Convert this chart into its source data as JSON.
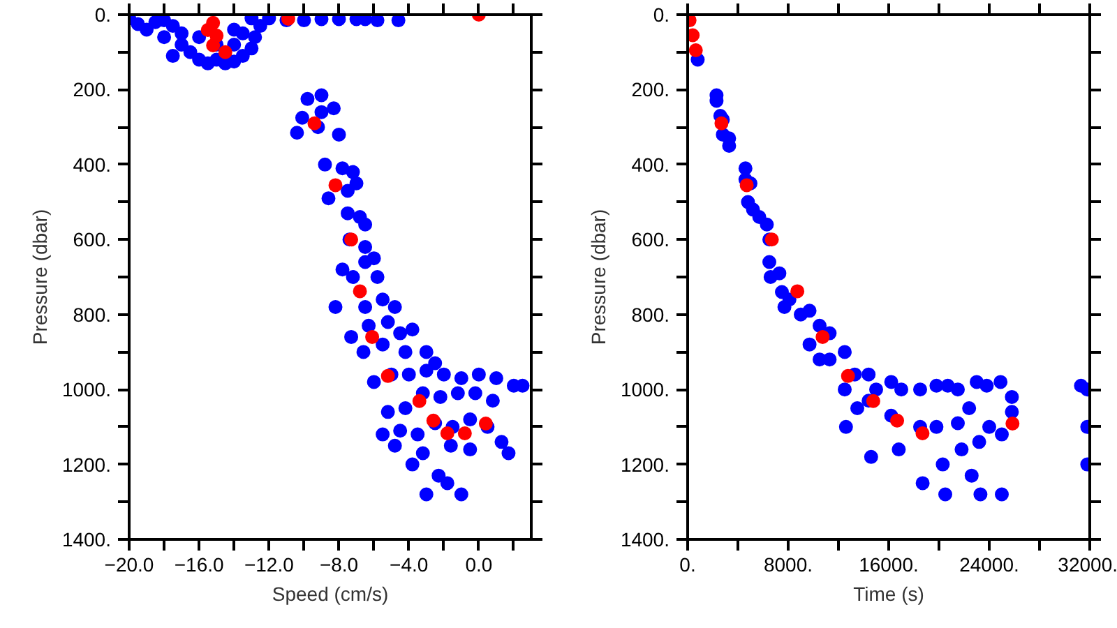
{
  "chart_data": [
    {
      "type": "scatter",
      "xlabel": "Speed (cm/s)",
      "ylabel": "Pressure (dbar)",
      "marker": "circle",
      "grid": false,
      "xlim": [
        -20,
        3
      ],
      "ylim": [
        1400,
        0
      ],
      "xticks": [
        {
          "value": -20,
          "label": "−20.0"
        },
        {
          "value": -18,
          "label": null
        },
        {
          "value": -16,
          "label": "−16.0"
        },
        {
          "value": -14,
          "label": null
        },
        {
          "value": -12,
          "label": "−12.0"
        },
        {
          "value": -10,
          "label": null
        },
        {
          "value": -8,
          "label": "−8.0"
        },
        {
          "value": -6,
          "label": null
        },
        {
          "value": -4,
          "label": "−4.0"
        },
        {
          "value": -2,
          "label": null
        },
        {
          "value": 0,
          "label": "0.0"
        },
        {
          "value": 2,
          "label": null
        }
      ],
      "yticks": [
        {
          "value": 0,
          "label": "0."
        },
        {
          "value": 100,
          "label": null
        },
        {
          "value": 200,
          "label": "200."
        },
        {
          "value": 300,
          "label": null
        },
        {
          "value": 400,
          "label": "400."
        },
        {
          "value": 500,
          "label": null
        },
        {
          "value": 600,
          "label": "600."
        },
        {
          "value": 700,
          "label": null
        },
        {
          "value": 800,
          "label": "800."
        },
        {
          "value": 900,
          "label": null
        },
        {
          "value": 1000,
          "label": "1000."
        },
        {
          "value": 1100,
          "label": null
        },
        {
          "value": 1200,
          "label": "1200."
        },
        {
          "value": 1300,
          "label": null
        },
        {
          "value": 1400,
          "label": "1400."
        }
      ],
      "series": [
        {
          "color": "#0000ff",
          "x": [
            -20,
            -19.5,
            -19,
            -18.5,
            -18,
            -17.5,
            -17,
            -17,
            -16.5,
            -16,
            -15.5,
            -15,
            -14.5,
            -14,
            -13.5,
            -13,
            -12.8,
            -12.5,
            -13,
            -14,
            -15,
            -16,
            -14,
            -13.5,
            -17.5,
            -18,
            -12,
            -11,
            -10,
            -9,
            -8,
            -7,
            -6.5,
            -5.8,
            -4.6,
            -9.8,
            -9.0,
            -10.1,
            -9,
            -8.3,
            -10.4,
            -9.2,
            -8.0,
            -8.8,
            -7.8,
            -7.2,
            -8.6,
            -7.5,
            -7,
            -7.5,
            -6.8,
            -6.5,
            -7.4,
            -6.5,
            -7.8,
            -6.5,
            -6,
            -7.2,
            -5.8,
            -8.2,
            -6.5,
            -5.5,
            -4.8,
            -7.3,
            -6.3,
            -5.2,
            -4.5,
            -3.8,
            -6.6,
            -5.5,
            -4.2,
            -3,
            -2.5,
            -6.0,
            -5,
            -4,
            -3,
            -2,
            -1,
            0,
            1,
            2.0,
            2.5,
            -5.2,
            -4.2,
            -3.2,
            -2.2,
            -1.2,
            -0.2,
            0.8,
            -5.5,
            -4.5,
            -3.5,
            -2.5,
            -1.5,
            -0.5,
            0.5,
            1.3,
            -4.8,
            -3.2,
            -1.6,
            -0.5,
            1.7,
            -3.8,
            -2.3,
            -1.8,
            -3.0,
            -1.0
          ],
          "values": [
            10,
            25,
            40,
            20,
            15,
            30,
            50,
            80,
            100,
            120,
            130,
            120,
            130,
            125,
            110,
            90,
            60,
            30,
            10,
            40,
            80,
            60,
            80,
            50,
            110,
            60,
            10,
            15,
            15,
            12,
            12,
            12,
            12,
            15,
            15,
            225,
            215,
            275,
            260,
            250,
            315,
            300,
            320,
            400,
            410,
            420,
            490,
            470,
            450,
            530,
            540,
            560,
            600,
            620,
            680,
            660,
            650,
            700,
            700,
            780,
            780,
            760,
            780,
            860,
            830,
            820,
            850,
            840,
            900,
            880,
            900,
            900,
            930,
            980,
            960,
            960,
            950,
            960,
            970,
            960,
            970,
            990,
            990,
            1060,
            1050,
            1010,
            1020,
            1010,
            1010,
            1030,
            1120,
            1110,
            1120,
            1090,
            1100,
            1080,
            1100,
            1140,
            1150,
            1170,
            1150,
            1160,
            1170,
            1200,
            1230,
            1250,
            1280,
            1280
          ]
        },
        {
          "color": "#ff0000",
          "x": [
            0,
            -10.9,
            -15.2,
            -15.5,
            -15,
            -15.2,
            -14.5,
            -9.4,
            -8.2,
            -7.3,
            -6.8,
            -6.1,
            -5.2,
            -3.4,
            -2.6,
            -1.8,
            -0.8,
            0.4
          ],
          "values": [
            0,
            11,
            22,
            41,
            56,
            82,
            100,
            290,
            455,
            600,
            738,
            860,
            964,
            1031,
            1083,
            1117,
            1117,
            1091
          ]
        }
      ]
    },
    {
      "type": "scatter",
      "xlabel": "Time (s)",
      "ylabel": "Pressure (dbar)",
      "marker": "circle",
      "grid": false,
      "xlim": [
        0,
        32000
      ],
      "ylim": [
        1400,
        0
      ],
      "xticks": [
        {
          "value": 0,
          "label": "0."
        },
        {
          "value": 4000,
          "label": null
        },
        {
          "value": 8000,
          "label": "8000."
        },
        {
          "value": 12000,
          "label": null
        },
        {
          "value": 16000,
          "label": "16000."
        },
        {
          "value": 20000,
          "label": null
        },
        {
          "value": 24000,
          "label": "24000."
        },
        {
          "value": 28000,
          "label": null
        },
        {
          "value": 32000,
          "label": "32000."
        }
      ],
      "yticks": [
        {
          "value": 0,
          "label": "0."
        },
        {
          "value": 100,
          "label": null
        },
        {
          "value": 200,
          "label": "200."
        },
        {
          "value": 300,
          "label": null
        },
        {
          "value": 400,
          "label": "400."
        },
        {
          "value": 500,
          "label": null
        },
        {
          "value": 600,
          "label": "600."
        },
        {
          "value": 700,
          "label": null
        },
        {
          "value": 800,
          "label": "800."
        },
        {
          "value": 900,
          "label": null
        },
        {
          "value": 1000,
          "label": "1000."
        },
        {
          "value": 1100,
          "label": null
        },
        {
          "value": 1200,
          "label": "1200."
        },
        {
          "value": 1300,
          "label": null
        },
        {
          "value": 1400,
          "label": "1400."
        }
      ],
      "series": [
        {
          "color": "#0000ff",
          "x": [
            800,
            2300,
            2300,
            2600,
            2800,
            2800,
            3300,
            3300,
            4600,
            4600,
            5000,
            4800,
            5200,
            5700,
            6300,
            6500,
            6500,
            6600,
            7300,
            7500,
            7700,
            8100,
            9000,
            9700,
            9700,
            10500,
            10500,
            11300,
            11300,
            12500,
            12500,
            12600,
            13300,
            13500,
            14400,
            14400,
            14600,
            15000,
            16200,
            16200,
            16800,
            17000,
            18500,
            18500,
            18700,
            19800,
            19800,
            20300,
            20700,
            20500,
            21500,
            21500,
            21800,
            22400,
            22600,
            23000,
            23200,
            23300,
            23800,
            24000,
            24900,
            25000,
            25000,
            25800,
            25800,
            31300,
            31800,
            31800,
            31800
          ],
          "values": [
            120,
            215,
            230,
            270,
            280,
            320,
            330,
            350,
            410,
            440,
            450,
            500,
            520,
            540,
            560,
            600,
            660,
            700,
            690,
            740,
            780,
            760,
            800,
            790,
            880,
            830,
            920,
            850,
            920,
            900,
            1000,
            1100,
            960,
            1050,
            960,
            1030,
            1180,
            1000,
            980,
            1070,
            1160,
            1000,
            1000,
            1100,
            1250,
            990,
            1100,
            1200,
            990,
            1280,
            1000,
            1090,
            1160,
            1050,
            1230,
            980,
            1140,
            1280,
            990,
            1100,
            980,
            1120,
            1280,
            1020,
            1060,
            990,
            1000,
            1100,
            1200
          ]
        },
        {
          "color": "#ff0000",
          "x": [
            150,
            400,
            650,
            2690,
            4700,
            6700,
            8730,
            10740,
            12760,
            14770,
            16670,
            18690,
            25850
          ],
          "values": [
            15,
            55,
            95,
            290,
            455,
            600,
            738,
            860,
            964,
            1031,
            1083,
            1117,
            1091
          ]
        }
      ]
    }
  ]
}
